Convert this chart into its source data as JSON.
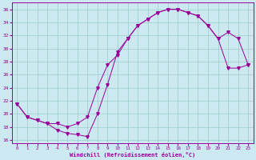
{
  "xlabel": "Windchill (Refroidissement éolien,°C)",
  "bg_color": "#cce8f0",
  "line_color": "#990099",
  "xlim": [
    -0.5,
    23.5
  ],
  "ylim": [
    15.5,
    37
  ],
  "yticks": [
    16,
    18,
    20,
    22,
    24,
    26,
    28,
    30,
    32,
    34,
    36
  ],
  "xticks": [
    0,
    1,
    2,
    3,
    4,
    5,
    6,
    7,
    8,
    9,
    10,
    11,
    12,
    13,
    14,
    15,
    16,
    17,
    18,
    19,
    20,
    21,
    22,
    23
  ],
  "curve_bottom_x": [
    0,
    1,
    2,
    3,
    4,
    5,
    6,
    7,
    8,
    9,
    10,
    11,
    12,
    13,
    14,
    15,
    16,
    17,
    18,
    19,
    20,
    21,
    22,
    23
  ],
  "curve_bottom_y": [
    21.5,
    19.5,
    19.0,
    18.5,
    17.5,
    17.0,
    16.8,
    16.5,
    20.0,
    24.5,
    29.5,
    31.5,
    33.5,
    34.5,
    35.5,
    36.0,
    36.0,
    35.5,
    35.0,
    33.5,
    31.5,
    27.0,
    27.0,
    27.5
  ],
  "curve_top_x": [
    0,
    1,
    2,
    3,
    4,
    5,
    6,
    7,
    8,
    9,
    10,
    11,
    12,
    13,
    14,
    15,
    16,
    17,
    18,
    19,
    20,
    21,
    22,
    23
  ],
  "curve_top_y": [
    21.5,
    19.5,
    19.0,
    18.5,
    18.5,
    18.0,
    18.5,
    19.5,
    24.0,
    27.5,
    29.0,
    31.5,
    33.5,
    34.5,
    35.5,
    36.0,
    36.0,
    35.5,
    35.0,
    33.5,
    31.5,
    32.5,
    31.5,
    27.5
  ],
  "grid_color": "#99cccc",
  "marker": "v",
  "markersize": 2.5,
  "linewidth": 0.7
}
